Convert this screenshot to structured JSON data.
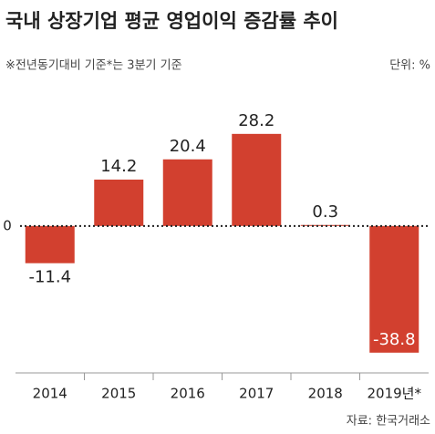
{
  "chart_data": {
    "type": "bar",
    "title": "국내 상장기업 평균 영업이익 증감률 추이",
    "subtitle": "※전년동기대비 기준*는 3분기 기준",
    "unit": "단위: %",
    "source": "자료: 한국거래소",
    "categories": [
      "2014",
      "2015",
      "2016",
      "2017",
      "2018",
      "2019년*"
    ],
    "values": [
      -11.4,
      14.2,
      20.4,
      28.2,
      0.3,
      -38.8
    ],
    "color": "#d2402f",
    "ylim": [
      -45,
      41
    ],
    "yticks": [
      0
    ]
  }
}
